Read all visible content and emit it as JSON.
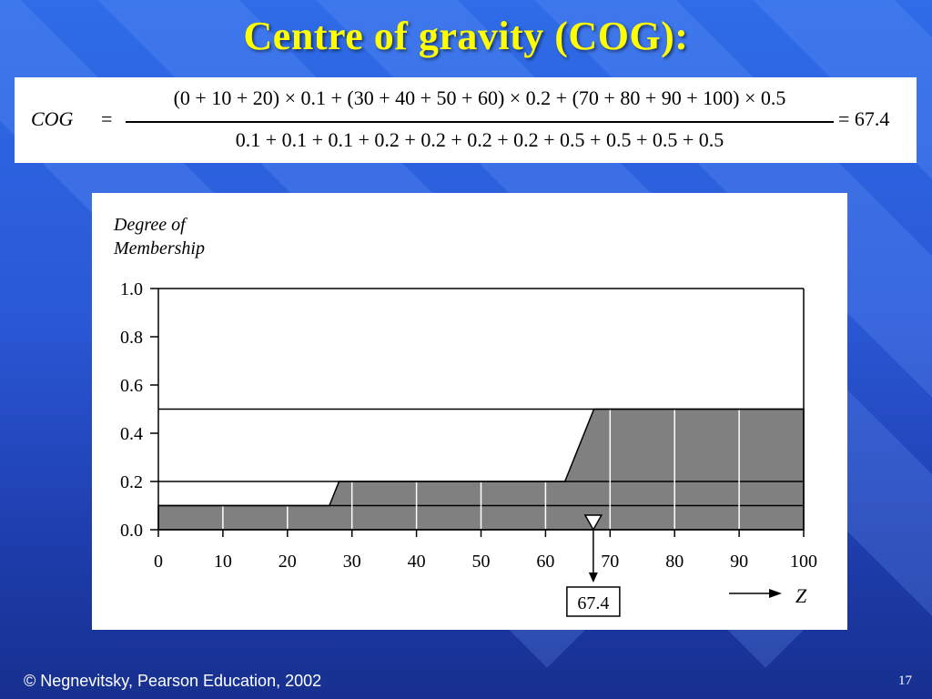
{
  "slide": {
    "title": "Centre of gravity (COG):",
    "footer": "© Negnevitsky, Pearson Education, 2002",
    "page_number": "17"
  },
  "formula": {
    "lhs": "COG",
    "equals": "=",
    "numerator": "(0 + 10 + 20) × 0.1 + (30 + 40 + 50 + 60) × 0.2 + (70 + 80 + 90 + 100) × 0.5",
    "denominator": "0.1 + 0.1 + 0.1 + 0.2 + 0.2 + 0.2 + 0.2 + 0.5 + 0.5 + 0.5 + 0.5",
    "result": "= 67.4"
  },
  "chart_data": {
    "type": "area",
    "ylabel": "Degree of Membership",
    "xlabel": "Z",
    "xlim": [
      0,
      100
    ],
    "ylim": [
      0.0,
      1.0
    ],
    "x_ticks": [
      "0",
      "10",
      "20",
      "30",
      "40",
      "50",
      "60",
      "70",
      "80",
      "90",
      "100"
    ],
    "y_ticks": [
      "1.0",
      "0.8",
      "0.6",
      "0.4",
      "0.2",
      "0.0"
    ],
    "aggregated_output": {
      "x": [
        0,
        26.5,
        28,
        63,
        67.5,
        100
      ],
      "y": [
        0.1,
        0.1,
        0.2,
        0.2,
        0.5,
        0.5
      ]
    },
    "clip_levels": [
      0.1,
      0.2,
      0.5
    ],
    "sample_lines_x": [
      10,
      20,
      30,
      40,
      50,
      60,
      70,
      80,
      90
    ],
    "cog_value": 67.4,
    "cog_label": "67.4",
    "colors": {
      "fill": "#808080",
      "background": "#ffffff",
      "line": "#000000"
    }
  }
}
